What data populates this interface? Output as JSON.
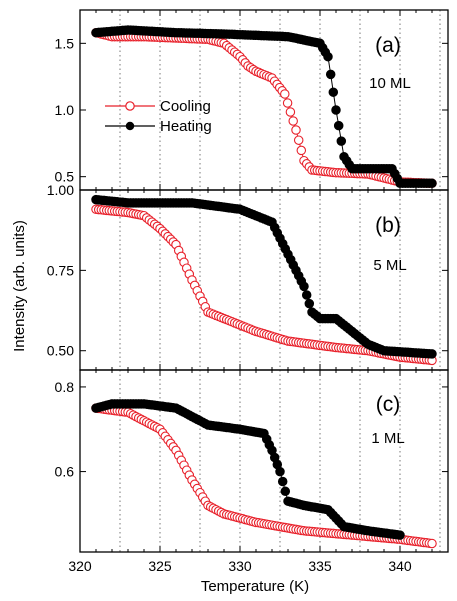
{
  "chart_data": {
    "type": "scatter",
    "xlabel": "Temperature (K)",
    "ylabel": "Intensity (arb. units)",
    "xlim": [
      320,
      343
    ],
    "xticks": [
      320,
      325,
      330,
      335,
      340
    ],
    "grid": "vertical dotted lines",
    "legend": {
      "placement": "upper-left of panel (a)",
      "entries": [
        "Cooling",
        "Heating"
      ]
    },
    "series_style": {
      "Cooling": {
        "color": "#e8212b",
        "marker": "open circle",
        "line": true
      },
      "Heating": {
        "color": "#000000",
        "marker": "filled circle",
        "line": true
      }
    },
    "panels": [
      {
        "label": "(a)",
        "thickness": "10 ML",
        "ylim": [
          0.4,
          1.75
        ],
        "yticks": [
          "0.5",
          "1.0",
          "1.5"
        ],
        "series": [
          {
            "name": "Cooling",
            "points": [
              [
                321,
                1.58
              ],
              [
                322,
                1.55
              ],
              [
                324,
                1.55
              ],
              [
                326,
                1.54
              ],
              [
                328,
                1.53
              ],
              [
                329,
                1.5
              ],
              [
                330,
                1.4
              ],
              [
                330.5,
                1.33
              ],
              [
                331,
                1.29
              ],
              [
                332,
                1.24
              ],
              [
                332.8,
                1.12
              ],
              [
                333.5,
                0.85
              ],
              [
                334,
                0.62
              ],
              [
                334.5,
                0.55
              ],
              [
                336,
                0.53
              ],
              [
                338,
                0.52
              ],
              [
                339,
                0.49
              ],
              [
                340,
                0.46
              ],
              [
                342,
                0.45
              ]
            ]
          },
          {
            "name": "Heating",
            "points": [
              [
                321,
                1.58
              ],
              [
                323,
                1.6
              ],
              [
                326,
                1.58
              ],
              [
                329,
                1.57
              ],
              [
                331,
                1.56
              ],
              [
                333,
                1.55
              ],
              [
                335,
                1.5
              ],
              [
                335.5,
                1.4
              ],
              [
                336,
                1.0
              ],
              [
                336.5,
                0.65
              ],
              [
                337,
                0.56
              ],
              [
                338,
                0.56
              ],
              [
                339.5,
                0.56
              ],
              [
                340,
                0.45
              ],
              [
                342,
                0.45
              ]
            ]
          }
        ]
      },
      {
        "label": "(b)",
        "thickness": "5 ML",
        "ylim": [
          0.44,
          1.0
        ],
        "yticks": [
          "0.50",
          "0.75",
          "1.00"
        ],
        "series": [
          {
            "name": "Cooling",
            "points": [
              [
                321,
                0.94
              ],
              [
                323,
                0.93
              ],
              [
                324,
                0.92
              ],
              [
                325,
                0.88
              ],
              [
                326,
                0.83
              ],
              [
                327,
                0.72
              ],
              [
                328,
                0.62
              ],
              [
                329,
                0.6
              ],
              [
                331,
                0.56
              ],
              [
                333,
                0.53
              ],
              [
                336,
                0.51
              ],
              [
                338,
                0.5
              ],
              [
                340,
                0.48
              ],
              [
                342,
                0.47
              ]
            ]
          },
          {
            "name": "Heating",
            "points": [
              [
                321,
                0.97
              ],
              [
                323,
                0.96
              ],
              [
                327,
                0.96
              ],
              [
                330,
                0.94
              ],
              [
                331,
                0.92
              ],
              [
                332,
                0.9
              ],
              [
                333,
                0.8
              ],
              [
                334,
                0.7
              ],
              [
                334.5,
                0.62
              ],
              [
                335,
                0.6
              ],
              [
                336,
                0.6
              ],
              [
                337,
                0.56
              ],
              [
                338,
                0.52
              ],
              [
                339,
                0.5
              ],
              [
                342,
                0.49
              ]
            ]
          }
        ]
      },
      {
        "label": "(c)",
        "thickness": "1 ML",
        "ylim": [
          0.41,
          0.84
        ],
        "yticks": [
          "0.6",
          "0.8"
        ],
        "series": [
          {
            "name": "Cooling",
            "points": [
              [
                321,
                0.75
              ],
              [
                323,
                0.74
              ],
              [
                324,
                0.72
              ],
              [
                325,
                0.7
              ],
              [
                326,
                0.65
              ],
              [
                327,
                0.58
              ],
              [
                328,
                0.52
              ],
              [
                329,
                0.5
              ],
              [
                331,
                0.48
              ],
              [
                334,
                0.46
              ],
              [
                337,
                0.45
              ],
              [
                340,
                0.44
              ],
              [
                342,
                0.43
              ]
            ]
          },
          {
            "name": "Heating",
            "points": [
              [
                321,
                0.75
              ],
              [
                322,
                0.76
              ],
              [
                324,
                0.76
              ],
              [
                326,
                0.75
              ],
              [
                327,
                0.73
              ],
              [
                328,
                0.71
              ],
              [
                330,
                0.7
              ],
              [
                331.5,
                0.69
              ],
              [
                332,
                0.65
              ],
              [
                332.5,
                0.6
              ],
              [
                333,
                0.53
              ],
              [
                334,
                0.52
              ],
              [
                335.5,
                0.51
              ],
              [
                336.5,
                0.47
              ],
              [
                338,
                0.46
              ],
              [
                340,
                0.45
              ]
            ]
          }
        ]
      }
    ]
  }
}
